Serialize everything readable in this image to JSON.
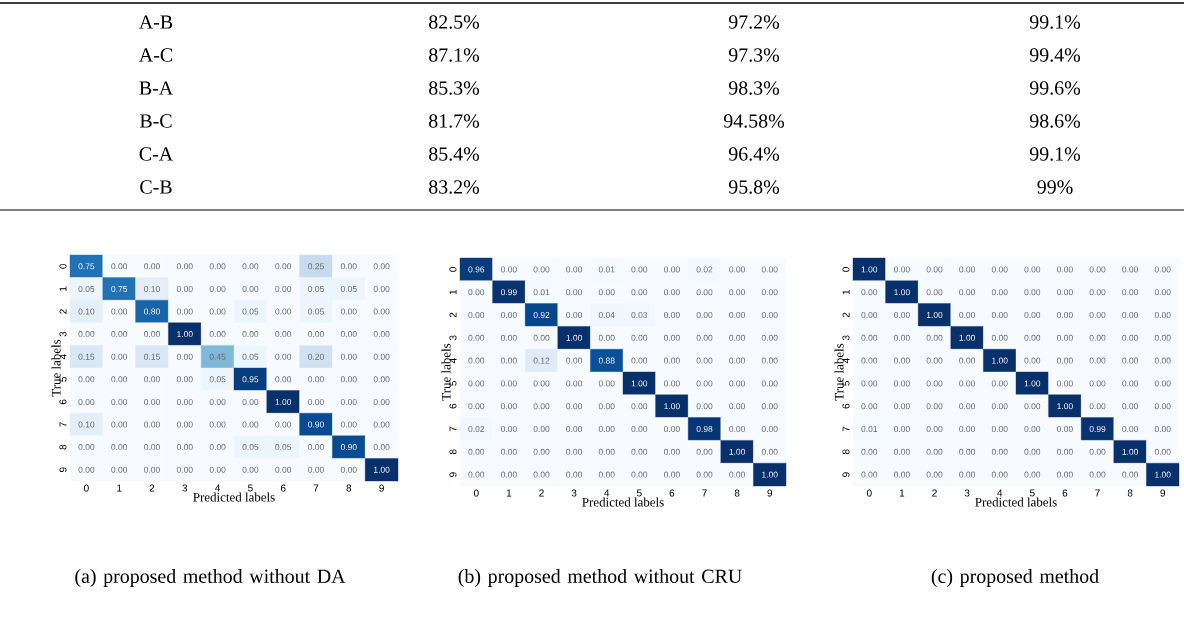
{
  "chart_data": [
    {
      "type": "other",
      "y_categories": [
        "A-B",
        "A-C",
        "B-A",
        "B-C",
        "C-A",
        "C-B"
      ],
      "cell_labels": [
        [
          "82.5%",
          "97.2%",
          "99.1%"
        ],
        [
          "87.1%",
          "97.3%",
          "99.4%"
        ],
        [
          "85.3%",
          "98.3%",
          "99.6%"
        ],
        [
          "81.7%",
          "94.58%",
          "98.6%"
        ],
        [
          "85.4%",
          "96.4%",
          "99.1%"
        ],
        [
          "83.2%",
          "95.8%",
          "99%"
        ]
      ]
    },
    {
      "type": "heatmap",
      "title": "(a) proposed method without DA",
      "xlabel": "Predicted labels",
      "ylabel": "True labels",
      "categories": [
        "0",
        "1",
        "2",
        "3",
        "4",
        "5",
        "6",
        "7",
        "8",
        "9"
      ],
      "y_categories": [
        "0",
        "1",
        "2",
        "3",
        "4",
        "5",
        "6",
        "7",
        "8",
        "9"
      ],
      "cells": [
        [
          0.75,
          0,
          0,
          0,
          0,
          0,
          0,
          0.25,
          0,
          0
        ],
        [
          0.05,
          0.75,
          0.1,
          0,
          0,
          0,
          0,
          0.05,
          0.05,
          0
        ],
        [
          0.1,
          0,
          0.8,
          0,
          0,
          0.05,
          0,
          0.05,
          0,
          0
        ],
        [
          0,
          0,
          0,
          1,
          0,
          0,
          0,
          0,
          0,
          0
        ],
        [
          0.15,
          0,
          0.15,
          0,
          0.45,
          0.05,
          0,
          0.2,
          0,
          0
        ],
        [
          0,
          0,
          0,
          0,
          0.05,
          0.95,
          0,
          0,
          0,
          0
        ],
        [
          0,
          0,
          0,
          0,
          0,
          0,
          1,
          0,
          0,
          0
        ],
        [
          0.1,
          0,
          0,
          0,
          0,
          0,
          0,
          0.9,
          0,
          0
        ],
        [
          0,
          0,
          0,
          0,
          0,
          0.05,
          0.05,
          0,
          0.9,
          0
        ],
        [
          0,
          0,
          0,
          0,
          0,
          0,
          0,
          0,
          0,
          1
        ]
      ],
      "cell_labels": [
        [
          "0.75",
          "0.00",
          "0.00",
          "0.00",
          "0.00",
          "0.00",
          "0.00",
          "0.25",
          "0.00",
          "0.00"
        ],
        [
          "0.05",
          "0.75",
          "0.10",
          "0.00",
          "0.00",
          "0.00",
          "0.00",
          "0.05",
          "0.05",
          "0.00"
        ],
        [
          "0.10",
          "0.00",
          "0.80",
          "0.00",
          "0.00",
          "0.05",
          "0.00",
          "0.05",
          "0.00",
          "0.00"
        ],
        [
          "0.00",
          "0.00",
          "0.00",
          "1.00",
          "0.00",
          "0.00",
          "0.00",
          "0.00",
          "0.00",
          "0.00"
        ],
        [
          "0.15",
          "0.00",
          "0.15",
          "0.00",
          "0.45",
          "0.05",
          "0.00",
          "0.20",
          "0.00",
          "0.00"
        ],
        [
          "0.00",
          "0.00",
          "0.00",
          "0.00",
          "0.05",
          "0.95",
          "0.00",
          "0.00",
          "0.00",
          "0.00"
        ],
        [
          "0.00",
          "0.00",
          "0.00",
          "0.00",
          "0.00",
          "0.00",
          "1.00",
          "0.00",
          "0.00",
          "0.00"
        ],
        [
          "0.10",
          "0.00",
          "0.00",
          "0.00",
          "0.00",
          "0.00",
          "0.00",
          "0.90",
          "0.00",
          "0.00"
        ],
        [
          "0.00",
          "0.00",
          "0.00",
          "0.00",
          "0.00",
          "0.05",
          "0.05",
          "0.00",
          "0.90",
          "0.00"
        ],
        [
          "0.00",
          "0.00",
          "0.00",
          "0.00",
          "0.00",
          "0.00",
          "0.00",
          "0.00",
          "0.00",
          "1.00"
        ]
      ]
    },
    {
      "type": "heatmap",
      "title": "(b) proposed method without CRU",
      "xlabel": "Predicted labels",
      "ylabel": "True labels",
      "categories": [
        "0",
        "1",
        "2",
        "3",
        "4",
        "5",
        "6",
        "7",
        "8",
        "9"
      ],
      "y_categories": [
        "0",
        "1",
        "2",
        "3",
        "4",
        "5",
        "6",
        "7",
        "8",
        "9"
      ],
      "cells": [
        [
          0.96,
          0,
          0,
          0,
          0.01,
          0,
          0,
          0.02,
          0,
          0
        ],
        [
          0,
          0.99,
          0.01,
          0,
          0,
          0,
          0,
          0,
          0,
          0
        ],
        [
          0,
          0,
          0.92,
          0,
          0.04,
          0.03,
          0,
          0,
          0,
          0
        ],
        [
          0,
          0,
          0,
          1,
          0,
          0,
          0,
          0,
          0,
          0
        ],
        [
          0,
          0,
          0.12,
          0,
          0.88,
          0,
          0,
          0,
          0,
          0
        ],
        [
          0,
          0,
          0,
          0,
          0,
          1,
          0,
          0,
          0,
          0
        ],
        [
          0,
          0,
          0,
          0,
          0,
          0,
          1,
          0,
          0,
          0
        ],
        [
          0.02,
          0,
          0,
          0,
          0,
          0,
          0,
          0.98,
          0,
          0
        ],
        [
          0,
          0,
          0,
          0,
          0,
          0,
          0,
          0,
          1,
          0
        ],
        [
          0,
          0,
          0,
          0,
          0,
          0,
          0,
          0,
          0,
          1
        ]
      ],
      "cell_labels": [
        [
          "0.96",
          "0.00",
          "0.00",
          "0.00",
          "0.01",
          "0.00",
          "0.00",
          "0.02",
          "0.00",
          "0.00"
        ],
        [
          "0.00",
          "0.99",
          "0.01",
          "0.00",
          "0.00",
          "0.00",
          "0.00",
          "0.00",
          "0.00",
          "0.00"
        ],
        [
          "0.00",
          "0.00",
          "0.92",
          "0.00",
          "0.04",
          "0.03",
          "0.00",
          "0.00",
          "0.00",
          "0.00"
        ],
        [
          "0.00",
          "0.00",
          "0.00",
          "1.00",
          "0.00",
          "0.00",
          "0.00",
          "0.00",
          "0.00",
          "0.00"
        ],
        [
          "0.00",
          "0.00",
          "0.12",
          "0.00",
          "0.88",
          "0.00",
          "0.00",
          "0.00",
          "0.00",
          "0.00"
        ],
        [
          "0.00",
          "0.00",
          "0.00",
          "0.00",
          "0.00",
          "1.00",
          "0.00",
          "0.00",
          "0.00",
          "0.00"
        ],
        [
          "0.00",
          "0.00",
          "0.00",
          "0.00",
          "0.00",
          "0.00",
          "1.00",
          "0.00",
          "0.00",
          "0.00"
        ],
        [
          "0.02",
          "0.00",
          "0.00",
          "0.00",
          "0.00",
          "0.00",
          "0.00",
          "0.98",
          "0.00",
          "0.00"
        ],
        [
          "0.00",
          "0.00",
          "0.00",
          "0.00",
          "0.00",
          "0.00",
          "0.00",
          "0.00",
          "1.00",
          "0.00"
        ],
        [
          "0.00",
          "0.00",
          "0.00",
          "0.00",
          "0.00",
          "0.00",
          "0.00",
          "0.00",
          "0.00",
          "1.00"
        ]
      ]
    },
    {
      "type": "heatmap",
      "title": "(c) proposed method",
      "xlabel": "Predicted labels",
      "ylabel": "True labels",
      "categories": [
        "0",
        "1",
        "2",
        "3",
        "4",
        "5",
        "6",
        "7",
        "8",
        "9"
      ],
      "y_categories": [
        "0",
        "1",
        "2",
        "3",
        "4",
        "5",
        "6",
        "7",
        "8",
        "9"
      ],
      "cells": [
        [
          1,
          0,
          0,
          0,
          0,
          0,
          0,
          0,
          0,
          0
        ],
        [
          0,
          1,
          0,
          0,
          0,
          0,
          0,
          0,
          0,
          0
        ],
        [
          0,
          0,
          1,
          0,
          0,
          0,
          0,
          0,
          0,
          0
        ],
        [
          0,
          0,
          0,
          1,
          0,
          0,
          0,
          0,
          0,
          0
        ],
        [
          0,
          0,
          0,
          0,
          1,
          0,
          0,
          0,
          0,
          0
        ],
        [
          0,
          0,
          0,
          0,
          0,
          1,
          0,
          0,
          0,
          0
        ],
        [
          0,
          0,
          0,
          0,
          0,
          0,
          1,
          0,
          0,
          0
        ],
        [
          0.01,
          0,
          0,
          0,
          0,
          0,
          0,
          0.99,
          0,
          0
        ],
        [
          0,
          0,
          0,
          0,
          0,
          0,
          0,
          0,
          1,
          0
        ],
        [
          0,
          0,
          0,
          0,
          0,
          0,
          0,
          0,
          0,
          1
        ]
      ],
      "cell_labels": [
        [
          "1.00",
          "0.00",
          "0.00",
          "0.00",
          "0.00",
          "0.00",
          "0.00",
          "0.00",
          "0.00",
          "0.00"
        ],
        [
          "0.00",
          "1.00",
          "0.00",
          "0.00",
          "0.00",
          "0.00",
          "0.00",
          "0.00",
          "0.00",
          "0.00"
        ],
        [
          "0.00",
          "0.00",
          "1.00",
          "0.00",
          "0.00",
          "0.00",
          "0.00",
          "0.00",
          "0.00",
          "0.00"
        ],
        [
          "0.00",
          "0.00",
          "0.00",
          "1.00",
          "0.00",
          "0.00",
          "0.00",
          "0.00",
          "0.00",
          "0.00"
        ],
        [
          "0.00",
          "0.00",
          "0.00",
          "0.00",
          "1.00",
          "0.00",
          "0.00",
          "0.00",
          "0.00",
          "0.00"
        ],
        [
          "0.00",
          "0.00",
          "0.00",
          "0.00",
          "0.00",
          "1.00",
          "0.00",
          "0.00",
          "0.00",
          "0.00"
        ],
        [
          "0.00",
          "0.00",
          "0.00",
          "0.00",
          "0.00",
          "0.00",
          "1.00",
          "0.00",
          "0.00",
          "0.00"
        ],
        [
          "0.01",
          "0.00",
          "0.00",
          "0.00",
          "0.00",
          "0.00",
          "0.00",
          "0.99",
          "0.00",
          "0.00"
        ],
        [
          "0.00",
          "0.00",
          "0.00",
          "0.00",
          "0.00",
          "0.00",
          "0.00",
          "0.00",
          "1.00",
          "0.00"
        ],
        [
          "0.00",
          "0.00",
          "0.00",
          "0.00",
          "0.00",
          "0.00",
          "0.00",
          "0.00",
          "0.00",
          "1.00"
        ]
      ]
    }
  ]
}
